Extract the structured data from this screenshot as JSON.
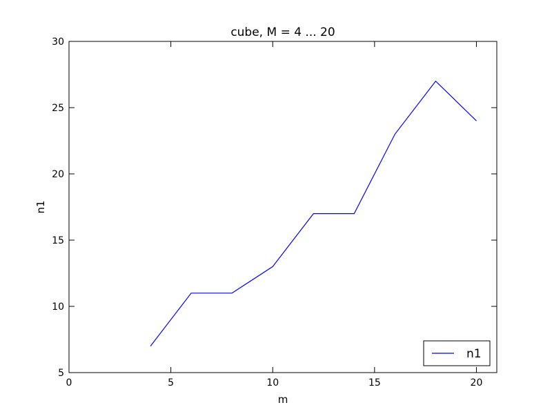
{
  "chart_data": {
    "type": "line",
    "title": "cube, M = 4 ... 20",
    "xlabel": "m",
    "ylabel": "n1",
    "xlim": [
      0,
      21
    ],
    "ylim": [
      5,
      30
    ],
    "xticks": [
      0,
      5,
      10,
      15,
      20
    ],
    "yticks": [
      5,
      10,
      15,
      20,
      25,
      30
    ],
    "grid": false,
    "legend_position": "lower-right",
    "series": [
      {
        "name": "n1",
        "color": "#0000ff",
        "x": [
          4,
          6,
          8,
          10,
          12,
          14,
          16,
          18,
          20
        ],
        "y": [
          7,
          11,
          11,
          13,
          17,
          17,
          23,
          27,
          24
        ]
      }
    ]
  }
}
